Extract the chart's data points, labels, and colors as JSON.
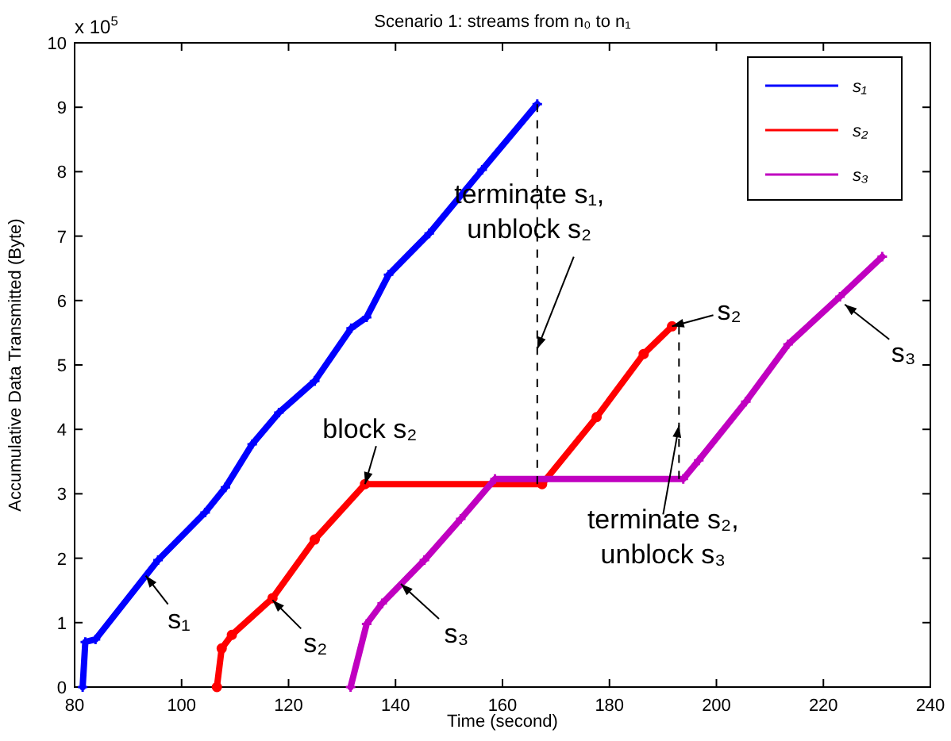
{
  "chart_data": {
    "type": "line",
    "title": "Scenario 1: streams from n₀ to n₁",
    "xlabel": "Time (second)",
    "ylabel": "Accumulative Data Transmitted (Byte)",
    "xlim": [
      80,
      240
    ],
    "xticks": [
      80,
      100,
      120,
      140,
      160,
      180,
      200,
      220,
      240
    ],
    "ylim": [
      0,
      10
    ],
    "yticks": [
      0,
      1,
      2,
      3,
      4,
      5,
      6,
      7,
      8,
      9,
      10
    ],
    "legend": "top right",
    "grid": false,
    "series": [
      {
        "name": "s₁",
        "color": "#0000ff",
        "marker": "cross",
        "x": [
          81.5,
          82,
          83.9,
          95.6,
          104.4,
          108.2,
          113.2,
          118.2,
          124.9,
          131.7,
          134.6,
          138.7,
          146.3,
          156.2,
          166.5
        ],
        "values": [
          0,
          0.7,
          0.74,
          1.97,
          2.71,
          3.1,
          3.77,
          4.26,
          4.75,
          5.57,
          5.74,
          6.4,
          7.04,
          8.03,
          9.05
        ]
      },
      {
        "name": "s₂",
        "color": "#ff0000",
        "marker": "circle",
        "x": [
          106.6,
          107.5,
          109.4,
          117,
          124.9,
          134.3,
          167.4,
          177.6,
          186.4,
          191.7
        ],
        "values": [
          0,
          0.6,
          0.81,
          1.38,
          2.29,
          3.15,
          3.15,
          4.19,
          5.17,
          5.6
        ]
      },
      {
        "name": "s₃",
        "color": "#c000c0",
        "marker": "cross",
        "x": [
          131.6,
          134.6,
          137.5,
          145.4,
          152.2,
          158.6,
          193.8,
          196.7,
          205.5,
          213.4,
          223.1,
          231
        ],
        "values": [
          0,
          0.98,
          1.3,
          1.97,
          2.61,
          3.23,
          3.23,
          3.52,
          4.43,
          5.32,
          6.06,
          6.68
        ]
      },
      {
        "color": "#000000",
        "line_style": "dashed",
        "x": [
          166.5,
          166.5
        ],
        "values": [
          3.15,
          9.05
        ]
      },
      {
        "color": "#000000",
        "line_style": "dashed",
        "x": [
          193,
          193
        ],
        "values": [
          3.23,
          5.6
        ]
      }
    ],
    "annotations": [
      "x 10$^{5}$",
      {
        "text": "block s₂",
        "x": 134.3,
        "y": 3.15
      },
      {
        "text": "terminate s₁,\nunblock s₂",
        "x": 166.5,
        "y": 5.25
      },
      {
        "text": "terminate s₂,\nunblock s₃",
        "x": 193,
        "y": 4.06
      },
      {
        "text": "s₂",
        "x": 191.7,
        "y": 5.6
      },
      {
        "text": "s₃",
        "x": 224,
        "y": 5.94
      },
      {
        "text": "s₁",
        "x": 93.3,
        "y": 1.73
      },
      {
        "text": "s₂",
        "x": 117,
        "y": 1.35
      },
      {
        "text": "s₃",
        "x": 141,
        "y": 1.6
      }
    ]
  }
}
